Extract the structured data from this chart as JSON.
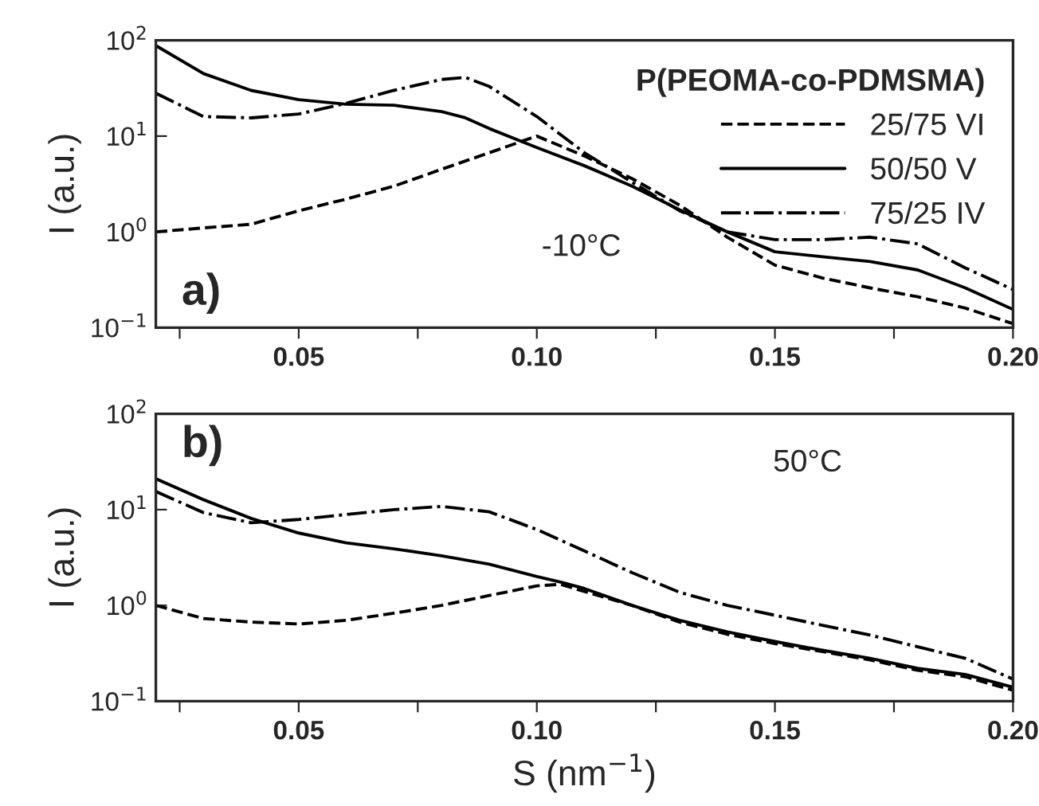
{
  "chart_data": [
    {
      "type": "line",
      "ylabel": "I (a.u.)",
      "log": "y",
      "grid": false,
      "legend": "top right",
      "legend_title": "P(PEOMA-co-PDMSMA)",
      "x": [
        0.02,
        0.03,
        0.04,
        0.05,
        0.06,
        0.07,
        0.08,
        0.085,
        0.09,
        0.1,
        0.11,
        0.12,
        0.13,
        0.14,
        0.15,
        0.16,
        0.17,
        0.18,
        0.19,
        0.2
      ],
      "xlim": [
        0.02,
        0.2
      ],
      "xticks": [
        {
          "value": 0.025,
          "label": null
        },
        {
          "value": 0.05,
          "label": "0.05"
        },
        {
          "value": 0.075,
          "label": null
        },
        {
          "value": 0.1,
          "label": "0.10"
        },
        {
          "value": 0.125,
          "label": null
        },
        {
          "value": 0.15,
          "label": "0.15"
        },
        {
          "value": 0.175,
          "label": null
        },
        {
          "value": 0.2,
          "label": "0.20"
        }
      ],
      "ylim": [
        0.1,
        100
      ],
      "yticks": [
        {
          "value": 0.1,
          "label": "10$^{−1}$"
        },
        {
          "value": 1,
          "label": "10$^{0}$"
        },
        {
          "value": 10,
          "label": "10$^{1}$"
        },
        {
          "value": 100,
          "label": "10$^{2}$"
        }
      ],
      "annotations": [
        "a)",
        "-10°C"
      ],
      "series": [
        {
          "name": "25/75 VI",
          "color": "#000000",
          "line_style": "dashed",
          "values": [
            1.0,
            1.1,
            1.2,
            1.66,
            2.2,
            3.0,
            4.5,
            5.5,
            6.7,
            10,
            6.2,
            3.6,
            1.9,
            0.88,
            0.45,
            0.33,
            0.26,
            0.21,
            0.16,
            0.11
          ]
        },
        {
          "name": "50/50 V",
          "color": "#000000",
          "line_style": "solid",
          "values": [
            88,
            45,
            30,
            24,
            21.5,
            21,
            18,
            15.5,
            12,
            7.6,
            4.9,
            3.0,
            1.7,
            1.0,
            0.62,
            0.55,
            0.49,
            0.4,
            0.26,
            0.155
          ]
        },
        {
          "name": "75/25 IV",
          "color": "#000000",
          "line_style": "dashdot",
          "values": [
            28,
            16,
            15.5,
            17,
            22,
            30,
            39,
            41,
            33,
            16,
            6.7,
            3.3,
            1.66,
            1.0,
            0.83,
            0.83,
            0.88,
            0.75,
            0.42,
            0.25
          ]
        }
      ]
    },
    {
      "type": "line",
      "ylabel": "I (a.u.)",
      "xlabel": "S (nm$^{−1}$)",
      "log": "y",
      "grid": false,
      "legend": false,
      "x": [
        0.02,
        0.03,
        0.04,
        0.05,
        0.06,
        0.07,
        0.08,
        0.09,
        0.1,
        0.105,
        0.11,
        0.12,
        0.13,
        0.14,
        0.15,
        0.16,
        0.17,
        0.18,
        0.19,
        0.2
      ],
      "xlim": [
        0.02,
        0.2
      ],
      "xticks": [
        {
          "value": 0.025,
          "label": null
        },
        {
          "value": 0.05,
          "label": "0.05"
        },
        {
          "value": 0.075,
          "label": null
        },
        {
          "value": 0.1,
          "label": "0.10"
        },
        {
          "value": 0.125,
          "label": null
        },
        {
          "value": 0.15,
          "label": "0.15"
        },
        {
          "value": 0.175,
          "label": null
        },
        {
          "value": 0.2,
          "label": "0.20"
        }
      ],
      "ylim": [
        0.1,
        100
      ],
      "yticks": [
        {
          "value": 0.1,
          "label": "10$^{−1}$"
        },
        {
          "value": 1,
          "label": "10$^{0}$"
        },
        {
          "value": 10,
          "label": "10$^{1}$"
        },
        {
          "value": 100,
          "label": "10$^{2}$"
        }
      ],
      "annotations": [
        "b)",
        "50°C"
      ],
      "series": [
        {
          "color": "#000000",
          "line_style": "dashed",
          "values": [
            1.0,
            0.73,
            0.67,
            0.64,
            0.7,
            0.83,
            1.0,
            1.27,
            1.6,
            1.66,
            1.4,
            1.0,
            0.67,
            0.5,
            0.4,
            0.33,
            0.27,
            0.21,
            0.18,
            0.13
          ]
        },
        {
          "color": "#000000",
          "line_style": "solid",
          "values": [
            21,
            12.7,
            8.1,
            5.7,
            4.5,
            3.9,
            3.3,
            2.7,
            2.0,
            1.75,
            1.5,
            1.0,
            0.7,
            0.53,
            0.42,
            0.34,
            0.28,
            0.22,
            0.19,
            0.14
          ]
        },
        {
          "color": "#000000",
          "line_style": "dashdot",
          "values": [
            15.5,
            9.3,
            7.3,
            7.9,
            8.9,
            10,
            10.8,
            9.5,
            6.2,
            4.8,
            3.7,
            2.2,
            1.37,
            1.0,
            0.79,
            0.62,
            0.49,
            0.37,
            0.28,
            0.17
          ]
        }
      ]
    }
  ]
}
